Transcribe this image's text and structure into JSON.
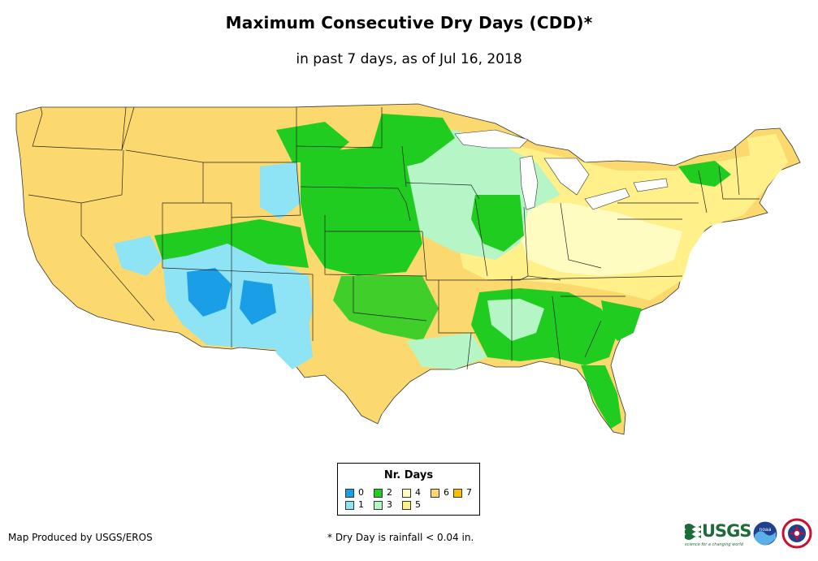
{
  "title": "Maximum Consecutive Dry Days (CDD)*",
  "subtitle": "in past 7 days, as of Jul 16, 2018",
  "legend": {
    "title": "Nr. Days",
    "items": [
      {
        "label": "0",
        "color": "#1a9fe6"
      },
      {
        "label": "1",
        "color": "#8ee3f5"
      },
      {
        "label": "2",
        "color": "#1fcc1f"
      },
      {
        "label": "3",
        "color": "#b5f5c6"
      },
      {
        "label": "4",
        "color": "#fffcc2"
      },
      {
        "label": "5",
        "color": "#fff08a"
      },
      {
        "label": "6",
        "color": "#fcd96e"
      },
      {
        "label": "7",
        "color": "#f5c000"
      }
    ]
  },
  "credit": "Map Produced by USGS/EROS",
  "footnote": "* Dry Day is rainfall < 0.04 in.",
  "logos": {
    "usgs": "USGS",
    "usgs_tagline": "science for a changing world",
    "noaa": "noaa"
  }
}
